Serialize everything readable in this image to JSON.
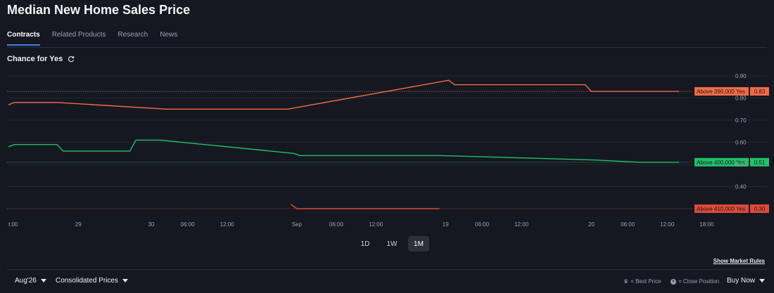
{
  "page": {
    "title": "Median New Home Sales Price"
  },
  "tabs": [
    {
      "label": "Contracts",
      "active": true
    },
    {
      "label": "Related Products",
      "active": false
    },
    {
      "label": "Research",
      "active": false
    },
    {
      "label": "News",
      "active": false
    }
  ],
  "chart_header": {
    "label": "Chance for Yes",
    "icon": "refresh-icon"
  },
  "chart_data": {
    "type": "line",
    "ylim": [
      0.3,
      0.9
    ],
    "y_ticks": [
      "0.90",
      "0.80",
      "0.70",
      "0.60",
      "0.50",
      "0.40"
    ],
    "x_ticks": [
      {
        "t": 0,
        "label": "t:00"
      },
      {
        "t": 23,
        "label": "29"
      },
      {
        "t": 47,
        "label": "30"
      },
      {
        "t": 59,
        "label": "06:00"
      },
      {
        "t": 72,
        "label": "12:00"
      },
      {
        "t": 95,
        "label": "Sep"
      },
      {
        "t": 108,
        "label": "06:00"
      },
      {
        "t": 121,
        "label": "12:00"
      },
      {
        "t": 144,
        "label": "19"
      },
      {
        "t": 156,
        "label": "06:00"
      },
      {
        "t": 169,
        "label": "12:00"
      },
      {
        "t": 192,
        "label": "20"
      },
      {
        "t": 204,
        "label": "06:00"
      },
      {
        "t": 217,
        "label": "12:00"
      },
      {
        "t": 230,
        "label": "18:00"
      }
    ],
    "x_range": [
      0,
      245
    ],
    "series": [
      {
        "name": "Above 390,000 Yes",
        "color": "#f26b48",
        "last": "0.83",
        "points": [
          [
            0,
            0.77
          ],
          [
            2,
            0.78
          ],
          [
            16,
            0.78
          ],
          [
            52,
            0.75
          ],
          [
            92,
            0.75
          ],
          [
            145,
            0.88
          ],
          [
            147,
            0.86
          ],
          [
            190,
            0.86
          ],
          [
            192,
            0.83
          ],
          [
            221,
            0.83
          ]
        ]
      },
      {
        "name": "Above 400,000 Yes",
        "color": "#21c069",
        "last": "0.51",
        "points": [
          [
            0,
            0.58
          ],
          [
            2,
            0.59
          ],
          [
            16,
            0.59
          ],
          [
            18,
            0.56
          ],
          [
            40,
            0.56
          ],
          [
            42,
            0.61
          ],
          [
            50,
            0.61
          ],
          [
            94,
            0.55
          ],
          [
            96,
            0.54
          ],
          [
            142,
            0.54
          ],
          [
            193,
            0.52
          ],
          [
            208,
            0.51
          ],
          [
            221,
            0.51
          ]
        ]
      },
      {
        "name": "Above 410,000 Yes",
        "color": "#e0483a",
        "last": "0.30",
        "points": [
          [
            93,
            0.32
          ],
          [
            95,
            0.3
          ],
          [
            142,
            0.3
          ]
        ]
      }
    ]
  },
  "range_buttons": [
    {
      "label": "1D",
      "active": false
    },
    {
      "label": "1W",
      "active": false
    },
    {
      "label": "1M",
      "active": true
    }
  ],
  "rules_link": "Show Market Rules",
  "footer": {
    "contract_month": "Aug'26",
    "price_mode": "Consolidated Prices",
    "best_price_legend": "= Best Price",
    "close_position_legend": "= Close Position",
    "buy_now": "Buy Now"
  }
}
